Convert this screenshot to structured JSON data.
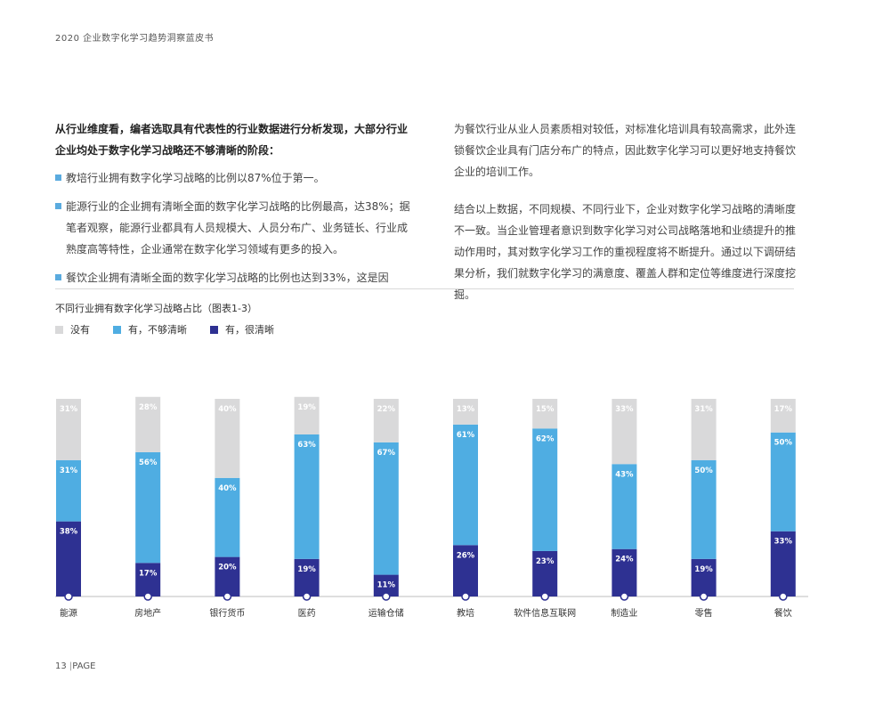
{
  "header": {
    "title": "2020 企业数字化学习趋势洞察蓝皮书"
  },
  "left_column": {
    "lead": "从行业维度看，编者选取具有代表性的行业数据进行分析发现，大部分行业企业均处于数字化学习战略还不够清晰的阶段：",
    "bullets": [
      "教培行业拥有数字化学习战略的比例以87%位于第一。",
      "能源行业的企业拥有清晰全面的数字化学习战略的比例最高，达38%；据笔者观察，能源行业都具有人员规模大、人员分布广、业务链长、行业成熟度高等特性，企业通常在数字化学习领域有更多的投入。",
      "餐饮企业拥有清晰全面的数字化学习战略的比例也达到33%，这是因"
    ]
  },
  "right_column": {
    "paragraphs": [
      "为餐饮行业从业人员素质相对较低，对标准化培训具有较高需求，此外连锁餐饮企业具有门店分布广的特点，因此数字化学习可以更好地支持餐饮企业的培训工作。",
      "结合以上数据，不同规模、不同行业下，企业对数字化学习战略的清晰度不一致。当企业管理者意识到数字化学习对公司战略落地和业绩提升的推动作用时，其对数字化学习工作的重视程度将不断提升。通过以下调研结果分析，我们就数字化学习的满意度、覆盖人群和定位等维度进行深度挖掘。"
    ]
  },
  "chart_title": "不同行业拥有数字化学习战略占比（图表1-3）",
  "legend": [
    {
      "label": "没有",
      "color": "#d9d9da"
    },
    {
      "label": "有，不够清晰",
      "color": "#4fade2"
    },
    {
      "label": "有，很清晰",
      "color": "#2e3192"
    }
  ],
  "chart_data": {
    "type": "bar",
    "stacked": true,
    "title": "不同行业拥有数字化学习战略占比（图表1-3）",
    "categories": [
      "能源",
      "房地产",
      "银行货币",
      "医药",
      "运输仓储",
      "教培",
      "软件信息互联网",
      "制造业",
      "零售",
      "餐饮"
    ],
    "series": [
      {
        "name": "有，很清晰",
        "color": "#2e3192",
        "values": [
          38,
          17,
          20,
          19,
          11,
          26,
          23,
          24,
          19,
          33
        ]
      },
      {
        "name": "有，不够清晰",
        "color": "#4fade2",
        "values": [
          31,
          56,
          40,
          63,
          67,
          61,
          62,
          43,
          50,
          50
        ]
      },
      {
        "name": "没有",
        "color": "#d9d9da",
        "values": [
          31,
          28,
          40,
          19,
          22,
          13,
          15,
          33,
          31,
          17
        ]
      }
    ],
    "value_labels": [
      "38%",
      "17%",
      "20%",
      "19%",
      "11%",
      "26%",
      "23%",
      "24%",
      "19%",
      "33%",
      "31%",
      "56%",
      "40%",
      "63%",
      "67%",
      "61%",
      "62%",
      "43%",
      "50%",
      "50%",
      "31%",
      "28%",
      "40%",
      "19%",
      "22%",
      "13%",
      "15%",
      "33%",
      "31%",
      "17%"
    ],
    "ylim": [
      0,
      100
    ]
  },
  "footer": {
    "page": "13",
    "separator": "|",
    "label": "PAGE"
  }
}
